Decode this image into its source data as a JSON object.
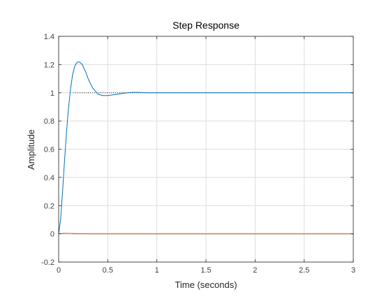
{
  "chart_data": {
    "type": "line",
    "title": "Step Response",
    "xlabel": "Time (seconds)",
    "ylabel": "Amplitude",
    "xlim": [
      0,
      3
    ],
    "ylim": [
      -0.2,
      1.4
    ],
    "xticks": [
      0,
      0.5,
      1,
      1.5,
      2,
      2.5,
      3
    ],
    "xtick_labels": [
      "0",
      "0.5",
      "1",
      "1.5",
      "2",
      "2.5",
      "3"
    ],
    "yticks": [
      -0.2,
      0,
      0.2,
      0.4,
      0.6,
      0.8,
      1,
      1.2,
      1.4
    ],
    "ytick_labels": [
      "-0.2",
      "0",
      "0.2",
      "0.4",
      "0.6",
      "0.8",
      "1",
      "1.2",
      "1.4"
    ],
    "grid": true,
    "legend": "none",
    "series": [
      {
        "color": "#0072bd",
        "style": "solid",
        "x": [
          0,
          0.02,
          0.04,
          0.06,
          0.08,
          0.1,
          0.12,
          0.14,
          0.16,
          0.18,
          0.2,
          0.22,
          0.24,
          0.26,
          0.28,
          0.3,
          0.32,
          0.35,
          0.4,
          0.45,
          0.5,
          0.55,
          0.6,
          0.65,
          0.7,
          0.75,
          0.8,
          0.85,
          0.9,
          1.0,
          1.2,
          1.5,
          2.0,
          2.5,
          3.0
        ],
        "y": [
          0,
          0.1,
          0.3,
          0.52,
          0.72,
          0.89,
          1.02,
          1.12,
          1.18,
          1.21,
          1.22,
          1.215,
          1.2,
          1.17,
          1.14,
          1.1,
          1.07,
          1.03,
          0.99,
          0.98,
          0.98,
          0.985,
          0.99,
          0.995,
          1.0,
          1.003,
          1.003,
          1.002,
          1.0,
          1.0,
          1.0,
          1.0,
          1.0,
          1.0,
          1.0
        ]
      },
      {
        "color": "#d95319",
        "style": "solid",
        "x": [
          0,
          0.05,
          0.1,
          0.2,
          0.3,
          0.5,
          1.0,
          2.0,
          3.0
        ],
        "y": [
          0,
          0.004,
          0.003,
          0.001,
          0.0,
          0.0,
          0.0,
          0.0,
          0.0
        ]
      }
    ],
    "reference_lines": [
      {
        "y": 1,
        "color": "#262626",
        "style": "dotted",
        "x_from": 0.15,
        "x_to": 3
      },
      {
        "y": 0,
        "color": "#262626",
        "style": "dotted",
        "x_from": 0.15,
        "x_to": 3
      }
    ]
  }
}
